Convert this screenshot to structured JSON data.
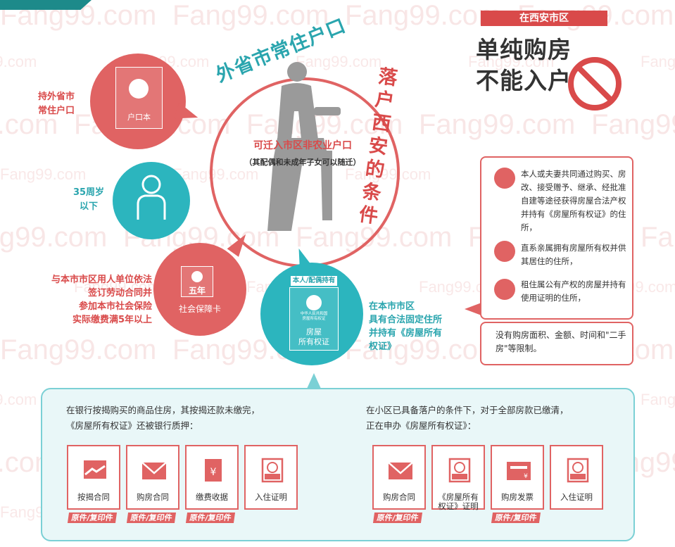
{
  "watermark": {
    "text": "Fang99.com"
  },
  "title_arc": {
    "part1": "外省市常住户口",
    "part2": "落户西安的条件"
  },
  "center": {
    "line1": "可迁入市区非农业户口",
    "line2": "（其配偶和未成年子女可以随迁）"
  },
  "conditions": {
    "hukou": {
      "label": "持外省市\n常住户口",
      "card": "户口本"
    },
    "age": {
      "label": "35周岁\n以下"
    },
    "social": {
      "label": "与本市市区用人单位依法\n签订劳动合同并\n参加本市社会保险\n实际缴费满5年以上",
      "card_top": "五年",
      "card_bottom": "社会保障卡"
    },
    "house": {
      "label": "在本市市区\n具有合法固定住所\n并持有《房屋所有\n权证》",
      "badge": "本人/配偶持有",
      "card": "房屋\n所有权证",
      "card_small": "中华人民共和国\n房屋所有权证"
    }
  },
  "top_right": {
    "badge": "在西安市区",
    "line1": "单纯购房",
    "line2": "不能入户"
  },
  "right_box": {
    "items": [
      {
        "icon": "house-exchange-icon",
        "text": "本人或夫妻共同通过购买、房改、接受赠予、继承、经批准自建等途径获得房屋合法产权并持有《房屋所有权证》的住所，"
      },
      {
        "icon": "family-home-icon",
        "text": "直系亲属拥有房屋所有权并供其居住的住所，"
      },
      {
        "icon": "rent-home-icon",
        "text": "租住属公有产权的房屋并持有使用证明的住所，"
      }
    ],
    "bottom": "没有购房面积、金额、时间和\"二手房\"等限制。"
  },
  "bottom_box": {
    "left": {
      "title": "在银行按揭购买的商品住房，其按揭还款未缴完，\n《房屋所有权证》还被银行质押：",
      "docs": [
        {
          "icon": "contract-handshake-icon",
          "label": "按揭合同"
        },
        {
          "icon": "envelope-icon",
          "label": "购房合同"
        },
        {
          "icon": "receipt-yen-icon",
          "label": "缴费收据"
        },
        {
          "icon": "certificate-stamp-icon",
          "label": "入住证明"
        }
      ],
      "tag": "原件/复印件"
    },
    "right": {
      "title": "在小区已具备落户的条件下，对于全部房款已缴清，\n正在申办《房屋所有权证》：",
      "docs": [
        {
          "icon": "envelope-icon",
          "label": "购房合同"
        },
        {
          "icon": "certificate-stamp-icon",
          "label": "《房屋所有\n权证》证明"
        },
        {
          "icon": "invoice-icon",
          "label": "购房发票"
        },
        {
          "icon": "certificate-stamp-icon",
          "label": "入住证明"
        }
      ],
      "tag": "原件/复印件",
      "stamp_chars": [
        "房",
        "证明",
        "证",
        "证明"
      ]
    }
  }
}
